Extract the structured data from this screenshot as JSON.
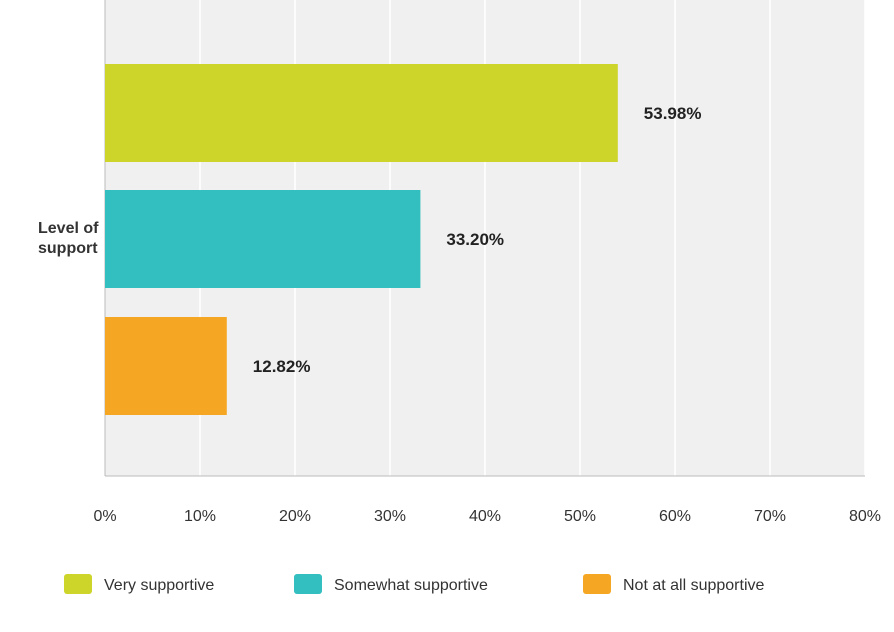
{
  "chart_data": {
    "type": "bar",
    "orientation": "horizontal",
    "category_label_lines": [
      "Level of",
      "support"
    ],
    "x_ticks": [
      "0%",
      "10%",
      "20%",
      "30%",
      "40%",
      "50%",
      "60%",
      "70%",
      "80%"
    ],
    "xlim": [
      0,
      80
    ],
    "grid": true,
    "legend_position": "bottom",
    "series": [
      {
        "name": "Very supportive",
        "value": 53.98,
        "label": "53.98%",
        "color": "#cdd52a"
      },
      {
        "name": "Somewhat supportive",
        "value": 33.2,
        "label": "33.20%",
        "color": "#33bfc0"
      },
      {
        "name": "Not at all supportive",
        "value": 12.82,
        "label": "12.82%",
        "color": "#f5a623"
      }
    ]
  }
}
